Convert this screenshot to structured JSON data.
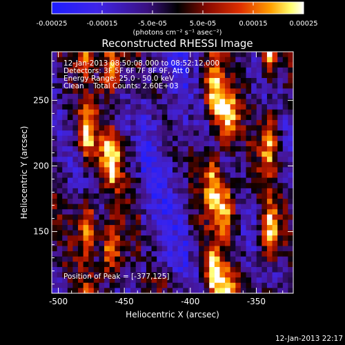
{
  "colorbar": {
    "tick_labels": [
      "-0.00025",
      "-0.00015",
      "-5.0e-05",
      "5.0e-05",
      "0.00015",
      "0.00025"
    ],
    "tick_values": [
      -0.00025,
      -0.00015,
      -5e-05,
      5e-05,
      0.00015,
      0.00025
    ],
    "range": [
      -0.00025,
      0.00025
    ],
    "unit_label": "(photons cm⁻² s⁻¹ asec⁻²)",
    "colormap": "blue-to-black-to-red-yellow-white"
  },
  "plot": {
    "title": "Reconstructed RHESSI Image",
    "xlabel": "Heliocentric X (arcsec)",
    "ylabel": "Heliocentric Y (arcsec)",
    "xticks": [
      "-500",
      "-450",
      "-400",
      "-350"
    ],
    "xtick_values": [
      -500,
      -450,
      -400,
      -350
    ],
    "yticks": [
      "150",
      "200",
      "250"
    ],
    "ytick_values": [
      150,
      200,
      250
    ],
    "xlim": [
      -505,
      -322
    ],
    "ylim": [
      103,
      287
    ]
  },
  "overlay": {
    "line1": "12-Jan-2013 08:50:08.000 to 08:52:12.000",
    "line2": "Detectors: 3F 5F 6F 7F 8F 9F, Att 0",
    "line3": "Energy Range: 25.0 - 50.0 keV",
    "line4": "Clean    Total Counts: 2.60E+03",
    "peak": "Position of Peak = [-377,125]"
  },
  "footer": {
    "timestamp": "12-Jan-2013 22:17"
  },
  "chart_data": {
    "type": "heatmap",
    "title": "Reconstructed RHESSI Image",
    "xlabel": "Heliocentric X (arcsec)",
    "ylabel": "Heliocentric Y (arcsec)",
    "xlim": [
      -505,
      -322
    ],
    "ylim": [
      103,
      287
    ],
    "peak_position": [
      -377,
      125
    ],
    "bright_stripe_centers_x": [
      -478,
      -460,
      -383,
      -373,
      -340
    ],
    "value_range": [
      -0.00025,
      0.00025
    ]
  }
}
